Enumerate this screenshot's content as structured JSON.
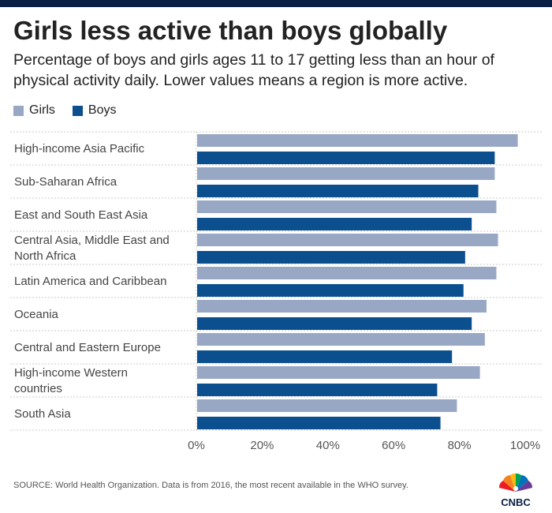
{
  "header": {
    "title": "Girls less active than boys globally",
    "subtitle": "Percentage of boys and girls ages 11 to 17 getting less than an hour of physical activity daily. Lower values means a region is more active."
  },
  "colors": {
    "girls": "#98a8c4",
    "boys": "#0c4f8e",
    "topbar": "#0a1f44"
  },
  "logo": {
    "text": "CNBC"
  },
  "source": "SOURCE: World Health Organization. Data is from 2016, the most recent available in the WHO survey.",
  "chart_data": {
    "type": "bar",
    "orientation": "horizontal",
    "title": "Girls less active than boys globally",
    "legend": [
      "Girls",
      "Boys"
    ],
    "legend_position": "top-left",
    "categories": [
      "High-income Asia Pacific",
      "Sub-Saharan Africa",
      "East and South East Asia",
      "Central Asia, Middle East and North Africa",
      "Latin America and Caribbean",
      "Oceania",
      "Central and Eastern Europe",
      "High-income Western countries",
      "South Asia"
    ],
    "category_lines": [
      [
        "High-income Asia Pacific"
      ],
      [
        "Sub-Saharan Africa"
      ],
      [
        "East and South East Asia"
      ],
      [
        "Central Asia, Middle East and",
        "North Africa"
      ],
      [
        "Latin America and Caribbean"
      ],
      [
        "Oceania"
      ],
      [
        "Central and Eastern Europe"
      ],
      [
        "High-income Western",
        "countries"
      ],
      [
        "South Asia"
      ]
    ],
    "series": [
      {
        "name": "Girls",
        "values": [
          97.5,
          90.5,
          91,
          91.5,
          91,
          88,
          87.5,
          86,
          79
        ]
      },
      {
        "name": "Boys",
        "values": [
          90.5,
          85.5,
          83.5,
          81.5,
          81,
          83.5,
          77.5,
          73,
          74
        ]
      }
    ],
    "xlim": [
      0,
      100
    ],
    "xticks": [
      "0%",
      "20%",
      "40%",
      "60%",
      "80%",
      "100%"
    ],
    "grid": true
  }
}
